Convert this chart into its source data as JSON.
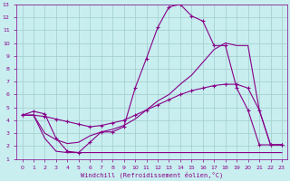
{
  "xlabel": "Windchill (Refroidissement éolien,°C)",
  "bg_color": "#c8eef0",
  "grid_color": "#a0cccc",
  "line_color": "#880088",
  "xlim": [
    -0.5,
    23.5
  ],
  "ylim": [
    1,
    13
  ],
  "xticks": [
    0,
    1,
    2,
    3,
    4,
    5,
    6,
    7,
    8,
    9,
    10,
    11,
    12,
    13,
    14,
    15,
    16,
    17,
    18,
    19,
    20,
    21,
    22,
    23
  ],
  "yticks": [
    1,
    2,
    3,
    4,
    5,
    6,
    7,
    8,
    9,
    10,
    11,
    12,
    13
  ],
  "line1_x": [
    0,
    1,
    2,
    3,
    4,
    5,
    6,
    7,
    8,
    9,
    10,
    11,
    12,
    13,
    14,
    15,
    16,
    17,
    18,
    19,
    20,
    21,
    22,
    23
  ],
  "line1_y": [
    4.4,
    4.7,
    4.5,
    2.6,
    1.6,
    1.5,
    2.3,
    3.1,
    3.1,
    3.5,
    6.5,
    8.8,
    11.2,
    12.8,
    13.0,
    12.1,
    11.7,
    9.8,
    9.8,
    6.5,
    4.8,
    2.1,
    2.1,
    2.1
  ],
  "line2_x": [
    0,
    1,
    2,
    3,
    4,
    5,
    6,
    7,
    8,
    9,
    10,
    11,
    12,
    13,
    14,
    15,
    16,
    17,
    18,
    19,
    20,
    21,
    22,
    23
  ],
  "line2_y": [
    4.4,
    4.4,
    4.3,
    4.1,
    3.9,
    3.7,
    3.5,
    3.6,
    3.8,
    4.0,
    4.4,
    4.8,
    5.2,
    5.6,
    6.0,
    6.3,
    6.5,
    6.7,
    6.8,
    6.8,
    6.5,
    4.8,
    2.1,
    2.1
  ],
  "line3_x": [
    0,
    1,
    2,
    3,
    4,
    5,
    6,
    7,
    8,
    9,
    10,
    11,
    12,
    13,
    14,
    15,
    16,
    17,
    18,
    19,
    20,
    21,
    22,
    23
  ],
  "line3_y": [
    4.4,
    4.4,
    2.6,
    1.6,
    1.5,
    1.5,
    1.5,
    1.5,
    1.5,
    1.5,
    1.5,
    1.5,
    1.5,
    1.5,
    1.5,
    1.5,
    1.5,
    1.5,
    1.5,
    1.5,
    1.5,
    1.5,
    1.5,
    1.5
  ],
  "line4_x": [
    0,
    1,
    2,
    3,
    4,
    5,
    6,
    7,
    8,
    9,
    10,
    11,
    12,
    13,
    14,
    15,
    16,
    17,
    18,
    19,
    20,
    21,
    22,
    23
  ],
  "line4_y": [
    4.4,
    4.4,
    3.0,
    2.5,
    2.2,
    2.3,
    2.8,
    3.1,
    3.3,
    3.6,
    4.1,
    4.8,
    5.5,
    6.0,
    6.8,
    7.5,
    8.5,
    9.5,
    10.0,
    9.8,
    9.8,
    4.8,
    2.1,
    2.1
  ]
}
